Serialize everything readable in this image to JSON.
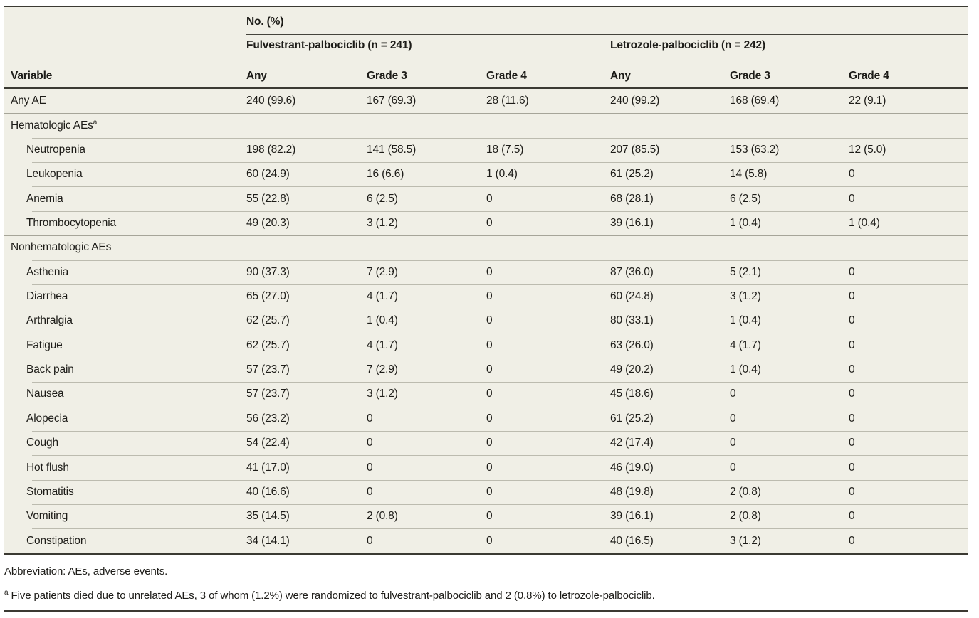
{
  "table": {
    "column_group_title": "No. (%)",
    "row_header": "Variable",
    "groups": [
      {
        "label": "Fulvestrant-palbociclib (n = 241)",
        "subcolumns": [
          "Any",
          "Grade 3",
          "Grade 4"
        ]
      },
      {
        "label": "Letrozole-palbociclib (n = 242)",
        "subcolumns": [
          "Any",
          "Grade 3",
          "Grade 4"
        ]
      }
    ],
    "rows": [
      {
        "label": "Any AE",
        "type": "data",
        "indent": 0,
        "values": [
          "240 (99.6)",
          "167 (69.3)",
          "28 (11.6)",
          "240 (99.2)",
          "168 (69.4)",
          "22 (9.1)"
        ]
      },
      {
        "label": "Hematologic AEs",
        "sup": "a",
        "type": "section",
        "values": [
          "",
          "",
          "",
          "",
          "",
          ""
        ]
      },
      {
        "label": "Neutropenia",
        "type": "data",
        "indent": 1,
        "values": [
          "198 (82.2)",
          "141 (58.5)",
          "18 (7.5)",
          "207 (85.5)",
          "153 (63.2)",
          "12 (5.0)"
        ]
      },
      {
        "label": "Leukopenia",
        "type": "data",
        "indent": 1,
        "values": [
          "60 (24.9)",
          "16 (6.6)",
          "1 (0.4)",
          "61 (25.2)",
          "14 (5.8)",
          "0"
        ]
      },
      {
        "label": "Anemia",
        "type": "data",
        "indent": 1,
        "values": [
          "55 (22.8)",
          "6 (2.5)",
          "0",
          "68 (28.1)",
          "6 (2.5)",
          "0"
        ]
      },
      {
        "label": "Thrombocytopenia",
        "type": "data",
        "indent": 1,
        "values": [
          "49 (20.3)",
          "3 (1.2)",
          "0",
          "39 (16.1)",
          "1 (0.4)",
          "1 (0.4)"
        ]
      },
      {
        "label": "Nonhematologic AEs",
        "type": "section",
        "values": [
          "",
          "",
          "",
          "",
          "",
          ""
        ]
      },
      {
        "label": "Asthenia",
        "type": "data",
        "indent": 1,
        "values": [
          "90 (37.3)",
          "7 (2.9)",
          "0",
          "87 (36.0)",
          "5 (2.1)",
          "0"
        ]
      },
      {
        "label": "Diarrhea",
        "type": "data",
        "indent": 1,
        "values": [
          "65 (27.0)",
          "4 (1.7)",
          "0",
          "60 (24.8)",
          "3 (1.2)",
          "0"
        ]
      },
      {
        "label": "Arthralgia",
        "type": "data",
        "indent": 1,
        "values": [
          "62 (25.7)",
          "1 (0.4)",
          "0",
          "80 (33.1)",
          "1 (0.4)",
          "0"
        ]
      },
      {
        "label": "Fatigue",
        "type": "data",
        "indent": 1,
        "values": [
          "62 (25.7)",
          "4 (1.7)",
          "0",
          "63 (26.0)",
          "4 (1.7)",
          "0"
        ]
      },
      {
        "label": "Back pain",
        "type": "data",
        "indent": 1,
        "values": [
          "57 (23.7)",
          "7 (2.9)",
          "0",
          "49 (20.2)",
          "1 (0.4)",
          "0"
        ]
      },
      {
        "label": "Nausea",
        "type": "data",
        "indent": 1,
        "values": [
          "57 (23.7)",
          "3 (1.2)",
          "0",
          "45 (18.6)",
          "0",
          "0"
        ]
      },
      {
        "label": "Alopecia",
        "type": "data",
        "indent": 1,
        "values": [
          "56 (23.2)",
          "0",
          "0",
          "61 (25.2)",
          "0",
          "0"
        ]
      },
      {
        "label": "Cough",
        "type": "data",
        "indent": 1,
        "values": [
          "54 (22.4)",
          "0",
          "0",
          "42 (17.4)",
          "0",
          "0"
        ]
      },
      {
        "label": "Hot flush",
        "type": "data",
        "indent": 1,
        "values": [
          "41 (17.0)",
          "0",
          "0",
          "46 (19.0)",
          "0",
          "0"
        ]
      },
      {
        "label": "Stomatitis",
        "type": "data",
        "indent": 1,
        "values": [
          "40 (16.6)",
          "0",
          "0",
          "48 (19.8)",
          "2 (0.8)",
          "0"
        ]
      },
      {
        "label": "Vomiting",
        "type": "data",
        "indent": 1,
        "values": [
          "35 (14.5)",
          "2 (0.8)",
          "0",
          "39 (16.1)",
          "2 (0.8)",
          "0"
        ]
      },
      {
        "label": "Constipation",
        "type": "data",
        "indent": 1,
        "values": [
          "34 (14.1)",
          "0",
          "0",
          "40 (16.5)",
          "3 (1.2)",
          "0"
        ]
      }
    ],
    "footnotes": {
      "abbreviation": "Abbreviation: AEs, adverse events.",
      "a_marker": "a",
      "a_text": "Five patients died due to unrelated AEs, 3 of whom (1.2%) were randomized to fulvestrant-palbociclib and 2 (0.8%) to letrozole-palbociclib."
    },
    "colors": {
      "table_background": "#F0EFE6",
      "dark_rule": "#3B3A33",
      "row_separator": "#BCBBAF",
      "section_separator": "#A6A599",
      "text": "#1D1C18"
    }
  }
}
